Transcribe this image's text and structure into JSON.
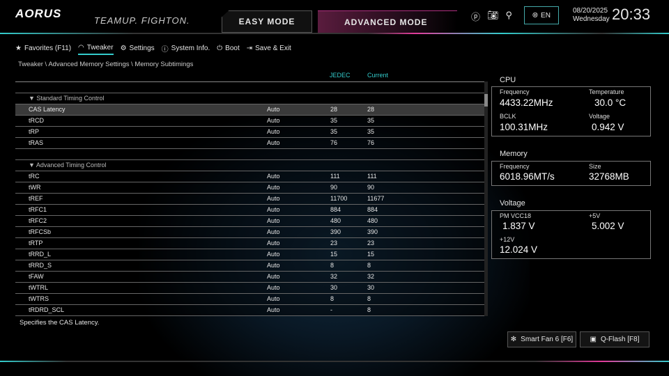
{
  "header": {
    "logo": "AORUS",
    "slogan": "TEAMUP. FIGHTON.",
    "easy_mode": "EASY MODE",
    "advanced_mode": "ADVANCED MODE",
    "language": "EN",
    "date": "08/20/2025",
    "weekday": "Wednesday",
    "time": "20:33"
  },
  "nav": [
    {
      "label": "Favorites (F11)",
      "icon": "star-folder-icon"
    },
    {
      "label": "Tweaker",
      "icon": "speedometer-icon",
      "active": true
    },
    {
      "label": "Settings",
      "icon": "gear-icon"
    },
    {
      "label": "System Info.",
      "icon": "info-icon"
    },
    {
      "label": "Boot",
      "icon": "power-icon"
    },
    {
      "label": "Save & Exit",
      "icon": "exit-icon"
    }
  ],
  "breadcrumb": [
    "Tweaker",
    "Advanced Memory Settings",
    "Memory Subtimings"
  ],
  "columns": {
    "jedec": "JEDEC",
    "current": "Current"
  },
  "rows": [
    {
      "type": "blank"
    },
    {
      "type": "section",
      "label": "▼ Standard Timing Control"
    },
    {
      "name": "CAS Latency",
      "value": "Auto",
      "jedec": "28",
      "current": "28",
      "selected": true
    },
    {
      "name": "tRCD",
      "value": "Auto",
      "jedec": "35",
      "current": "35"
    },
    {
      "name": "tRP",
      "value": "Auto",
      "jedec": "35",
      "current": "35"
    },
    {
      "name": "tRAS",
      "value": "Auto",
      "jedec": "76",
      "current": "76"
    },
    {
      "type": "blank"
    },
    {
      "type": "section",
      "label": "▼ Advanced Timing Control"
    },
    {
      "name": "tRC",
      "value": "Auto",
      "jedec": "111",
      "current": "111"
    },
    {
      "name": "tWR",
      "value": "Auto",
      "jedec": "90",
      "current": "90"
    },
    {
      "name": "tREF",
      "value": "Auto",
      "jedec": "11700",
      "current": "11677"
    },
    {
      "name": "tRFC1",
      "value": "Auto",
      "jedec": "884",
      "current": "884"
    },
    {
      "name": "tRFC2",
      "value": "Auto",
      "jedec": "480",
      "current": "480"
    },
    {
      "name": "tRFCSb",
      "value": "Auto",
      "jedec": "390",
      "current": "390"
    },
    {
      "name": "tRTP",
      "value": "Auto",
      "jedec": "23",
      "current": "23"
    },
    {
      "name": "tRRD_L",
      "value": "Auto",
      "jedec": "15",
      "current": "15"
    },
    {
      "name": "tRRD_S",
      "value": "Auto",
      "jedec": "8",
      "current": "8"
    },
    {
      "name": "tFAW",
      "value": "Auto",
      "jedec": "32",
      "current": "32"
    },
    {
      "name": "tWTRL",
      "value": "Auto",
      "jedec": "30",
      "current": "30"
    },
    {
      "name": "tWTRS",
      "value": "Auto",
      "jedec": "8",
      "current": "8"
    },
    {
      "name": "tRDRD_SCL",
      "value": "Auto",
      "jedec": "-",
      "current": "8"
    }
  ],
  "help": "Specifies the CAS Latency.",
  "cpu": {
    "title": "CPU",
    "freq_label": "Frequency",
    "freq": "4433.22MHz",
    "temp_label": "Temperature",
    "temp": "30.0 °C",
    "bclk_label": "BCLK",
    "bclk": "100.31MHz",
    "volt_label": "Voltage",
    "volt": "0.942 V"
  },
  "memory": {
    "title": "Memory",
    "freq_label": "Frequency",
    "freq": "6018.96MT/s",
    "size_label": "Size",
    "size": "32768MB"
  },
  "voltage": {
    "title": "Voltage",
    "vcc_label": "PM VCC18",
    "vcc": "1.837 V",
    "v5_label": "+5V",
    "v5": "5.002 V",
    "v12_label": "+12V",
    "v12": "12.024 V"
  },
  "buttons": {
    "smart_fan": "Smart Fan 6 [F6]",
    "qflash": "Q-Flash [F8]"
  },
  "colors": {
    "accent": "#33cccc",
    "magenta": "#e23a9a"
  }
}
